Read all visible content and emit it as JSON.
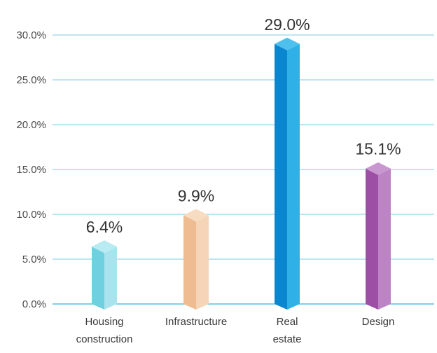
{
  "chart_data": {
    "type": "bar",
    "categories": [
      [
        "Housing",
        "construction"
      ],
      [
        "Infrastructure"
      ],
      [
        "Real",
        "estate"
      ],
      [
        "Design"
      ]
    ],
    "values": [
      6.4,
      9.9,
      29.0,
      15.1
    ],
    "value_labels": [
      "6.4%",
      "9.9%",
      "29.0%",
      "15.1%"
    ],
    "yticks": [
      "0.0%",
      "5.0%",
      "10.0%",
      "15.0%",
      "20.0%",
      "25.0%",
      "30.0%"
    ],
    "ylim": [
      0,
      30
    ],
    "grid": true,
    "bar_colors": [
      {
        "front": "#6fd0e0",
        "side": "#a9e4ee",
        "top": "#b9ebf2"
      },
      {
        "front": "#efbb90",
        "side": "#f6d4b7",
        "top": "#f8dcc2"
      },
      {
        "front": "#0a86cf",
        "side": "#2fb0e6",
        "top": "#4ec0ee"
      },
      {
        "front": "#9d4fa6",
        "side": "#bd84c5",
        "top": "#c897cf"
      }
    ],
    "gridline_color": "#7ccbe6",
    "baseline_color": "#5bbde0"
  }
}
